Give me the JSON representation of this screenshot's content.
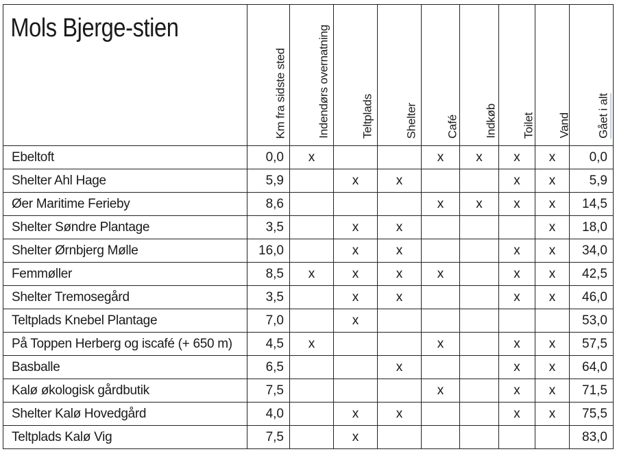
{
  "title": "Mols Bjerge-stien",
  "columns": [
    "Km fra sidste sted",
    "Indendørs overnatning",
    "Teltplads",
    "Shelter",
    "Café",
    "Indkøb",
    "Toilet",
    "Vand",
    "Gået i alt"
  ],
  "rows": [
    {
      "name": "Ebeltoft",
      "km": "0,0",
      "indoor": "x",
      "tent": "",
      "shelter": "",
      "cafe": "x",
      "shop": "x",
      "toilet": "x",
      "water": "x",
      "total": "0,0"
    },
    {
      "name": "Shelter Ahl Hage",
      "km": "5,9",
      "indoor": "",
      "tent": "x",
      "shelter": "x",
      "cafe": "",
      "shop": "",
      "toilet": "x",
      "water": "x",
      "total": "5,9"
    },
    {
      "name": "Øer Maritime Ferieby",
      "km": "8,6",
      "indoor": "",
      "tent": "",
      "shelter": "",
      "cafe": "x",
      "shop": "x",
      "toilet": "x",
      "water": "x",
      "total": "14,5"
    },
    {
      "name": "Shelter Søndre Plantage",
      "km": "3,5",
      "indoor": "",
      "tent": "x",
      "shelter": "x",
      "cafe": "",
      "shop": "",
      "toilet": "",
      "water": "x",
      "total": "18,0"
    },
    {
      "name": "Shelter Ørnbjerg Mølle",
      "km": "16,0",
      "indoor": "",
      "tent": "x",
      "shelter": "x",
      "cafe": "",
      "shop": "",
      "toilet": "x",
      "water": "x",
      "total": "34,0"
    },
    {
      "name": "Femmøller",
      "km": "8,5",
      "indoor": "x",
      "tent": "x",
      "shelter": "x",
      "cafe": "x",
      "shop": "",
      "toilet": "x",
      "water": "x",
      "total": "42,5"
    },
    {
      "name": "Shelter Tremosegård",
      "km": "3,5",
      "indoor": "",
      "tent": "x",
      "shelter": "x",
      "cafe": "",
      "shop": "",
      "toilet": "x",
      "water": "x",
      "total": "46,0"
    },
    {
      "name": "Teltplads Knebel Plantage",
      "km": "7,0",
      "indoor": "",
      "tent": "x",
      "shelter": "",
      "cafe": "",
      "shop": "",
      "toilet": "",
      "water": "",
      "total": "53,0"
    },
    {
      "name": "På Toppen Herberg og iscafé (+ 650 m)",
      "km": "4,5",
      "indoor": "x",
      "tent": "",
      "shelter": "",
      "cafe": "x",
      "shop": "",
      "toilet": "x",
      "water": "x",
      "total": "57,5"
    },
    {
      "name": "Basballe",
      "km": "6,5",
      "indoor": "",
      "tent": "",
      "shelter": "x",
      "cafe": "",
      "shop": "",
      "toilet": "x",
      "water": "x",
      "total": "64,0"
    },
    {
      "name": "Kalø økologisk gårdbutik",
      "km": "7,5",
      "indoor": "",
      "tent": "",
      "shelter": "",
      "cafe": "x",
      "shop": "",
      "toilet": "x",
      "water": "x",
      "total": "71,5"
    },
    {
      "name": "Shelter Kalø Hovedgård",
      "km": "4,0",
      "indoor": "",
      "tent": "x",
      "shelter": "x",
      "cafe": "",
      "shop": "",
      "toilet": "x",
      "water": "x",
      "total": "75,5"
    },
    {
      "name": "Teltplads Kalø Vig",
      "km": "7,5",
      "indoor": "",
      "tent": "x",
      "shelter": "",
      "cafe": "",
      "shop": "",
      "toilet": "",
      "water": "",
      "total": "83,0"
    }
  ]
}
